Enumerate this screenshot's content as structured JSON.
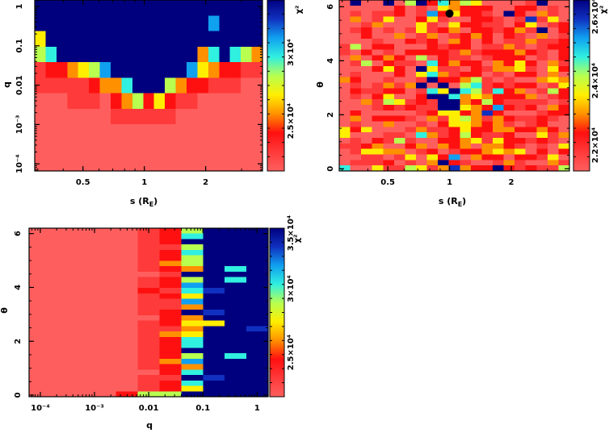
{
  "colormap": [
    "#ff5e5e",
    "#ff3a3a",
    "#ff1010",
    "#ff9000",
    "#ffee00",
    "#b8ff50",
    "#30f0e0",
    "#10a0f0",
    "#1030c0",
    "#00007f"
  ],
  "chart_data": [
    {
      "type": "heatmap",
      "xlabel": "s (R_E)",
      "ylabel": "q",
      "x_log": true,
      "y_log": true,
      "xlim": [
        0.29,
        3.8
      ],
      "ylim": [
        6.6e-05,
        1.46
      ],
      "xticks": [
        {
          "v": 0.5,
          "label": "0.5"
        },
        {
          "v": 1,
          "label": "1"
        },
        {
          "v": 2,
          "label": "2"
        }
      ],
      "yticks": [
        {
          "v": 0.0001,
          "label": "10⁻⁴"
        },
        {
          "v": 0.001,
          "label": "10⁻³"
        },
        {
          "v": 0.01,
          "label": "0.01"
        },
        {
          "v": 0.1,
          "label": "0.1"
        },
        {
          "v": 1,
          "label": "1"
        }
      ],
      "colorbar": {
        "label": "χ²",
        "ticks": [
          "3×10⁴",
          "2.5×10⁴"
        ]
      },
      "z_scale": "levels 0 (low χ², light red) to 9 (high χ², dark blue); rows top to bottom",
      "z_levels": [
        "999999999999999999999",
        "999999999999999979999",
        "499999999999999999999",
        "569999999999999369653",
        "122345799999997432211",
        "111112336999532211100",
        "000111023524211000000",
        "000000011111100000000",
        "000000000000000000000",
        "000000000000000000000",
        "000000000000000000000"
      ]
    },
    {
      "type": "heatmap",
      "xlabel": "s (R_E)",
      "ylabel": "θ",
      "x_log": true,
      "y_log": false,
      "xlim": [
        0.29,
        3.84
      ],
      "ylim": [
        -0.08,
        6.25
      ],
      "xticks": [
        {
          "v": 0.5,
          "label": "0.5"
        },
        {
          "v": 1,
          "label": "1"
        },
        {
          "v": 2,
          "label": "2"
        }
      ],
      "yticks": [
        {
          "v": 0,
          "label": "0"
        },
        {
          "v": 2,
          "label": "2"
        },
        {
          "v": 4,
          "label": "4"
        },
        {
          "v": 6,
          "label": "6"
        }
      ],
      "colorbar": {
        "label": "χ²",
        "ticks": [
          "2.6×10⁴",
          "2.4×10⁴",
          "2.2×10⁴"
        ]
      },
      "marker": {
        "x": 1.0,
        "y": 5.75
      },
      "z_scale": "levels 0 (low χ², light red) to 9 (high χ², dark blue); rows top to bottom",
      "z_levels": [
        "090090592635400001900",
        "000002010432220022010",
        "010112017242210920310",
        "030140024100221018140",
        "001300041042211024012",
        "012010141230221231902",
        "002003013012320210301",
        "000100212032020113112",
        "150220002122011310122",
        "102010222213122232102",
        "030232050211012220102",
        "015021106232203242031",
        "000242094110213341042",
        "010002046312201022030",
        "320010019223510100343",
        "010131390905612122014",
        "021122016496516230152",
        "010240029963432223012",
        "003154121993252111101",
        "000121211994327212032",
        "020000012442382000122",
        "030222103145313211210",
        "010030010244323101200",
        "424000131124223322320",
        "400011063125211200413",
        "010215100223414221210",
        "112300230323033210104",
        "014433012012234340202",
        "001101404270322022140",
        "011120103921001310031",
        "600411541383229212115"
      ]
    },
    {
      "type": "heatmap",
      "xlabel": "q",
      "ylabel": "θ",
      "x_log": true,
      "y_log": false,
      "xlim": [
        6.2e-05,
        1.6
      ],
      "ylim": [
        -0.06,
        6.2
      ],
      "xticks": [
        {
          "v": 0.0001,
          "label": "10⁻⁴"
        },
        {
          "v": 0.001,
          "label": "10⁻³"
        },
        {
          "v": 0.01,
          "label": "0.01"
        },
        {
          "v": 0.1,
          "label": "0.1"
        },
        {
          "v": 1,
          "label": "1"
        }
      ],
      "yticks": [
        {
          "v": 0,
          "label": "0"
        },
        {
          "v": 2,
          "label": "2"
        },
        {
          "v": 4,
          "label": "4"
        },
        {
          "v": 6,
          "label": "6"
        }
      ],
      "colorbar": {
        "label": "χ²",
        "ticks": [
          "3.5×10⁴",
          "3×10⁴",
          "2.5×10⁴"
        ]
      },
      "z_scale": "levels 0 (low χ², light red) to 9 (high χ², dark blue); rows top to bottom",
      "z_levels": [
        "00000125999",
        "00000126999",
        "00000129999",
        "00000115999",
        "00000126999",
        "00000125999",
        "00000135999",
        "00000123969",
        "00000019999",
        "00000125969",
        "00000127999",
        "00000216899",
        "00000124999",
        "00000117999",
        "00000113999",
        "00000129899",
        "00000023999",
        "00000124499",
        "00000113998",
        "00000134999",
        "00000126999",
        "00000126999",
        "00000129999",
        "00000125969",
        "00000137999",
        "00000123999",
        "00000026999",
        "00000119899",
        "00000126999",
        "00000124999",
        "00002559999"
      ]
    }
  ]
}
